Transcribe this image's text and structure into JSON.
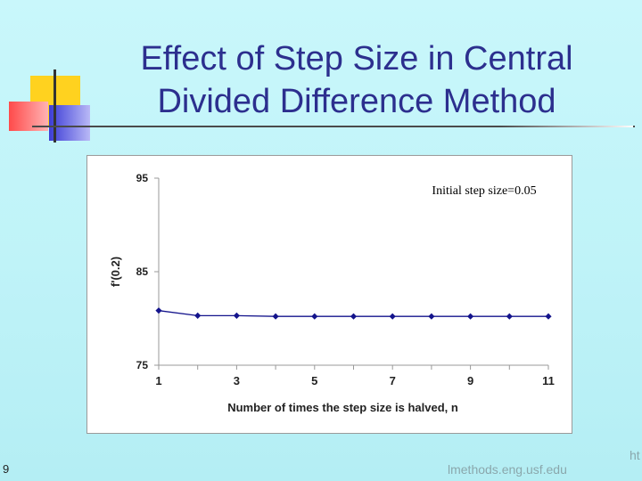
{
  "slide": {
    "title_lines": [
      "Effect of Step Size in Central",
      "Divided Difference Method"
    ],
    "slide_number": "9",
    "footer_url": "lmethods.eng.usf.edu",
    "corner_text": "ht"
  },
  "chart_data": {
    "type": "line",
    "annotation": "Initial step size=0.05",
    "xlabel": "Number of times the step size is halved, n",
    "ylabel": "f'(0.2)",
    "xlim": [
      1,
      11
    ],
    "ylim": [
      75,
      95
    ],
    "x_ticks": [
      "1",
      "3",
      "5",
      "7",
      "9",
      "11"
    ],
    "y_ticks": [
      "75",
      "85",
      "95"
    ],
    "grid": false,
    "colors": {
      "series": "#14148c",
      "axis": "#999999",
      "text": "#222222"
    },
    "series": [
      {
        "x": [
          1,
          2,
          3,
          4,
          5,
          6,
          7,
          8,
          9,
          10,
          11
        ],
        "y": [
          80.84,
          80.3,
          80.3,
          80.22,
          80.22,
          80.22,
          80.22,
          80.22,
          80.22,
          80.22,
          80.22
        ]
      }
    ]
  }
}
